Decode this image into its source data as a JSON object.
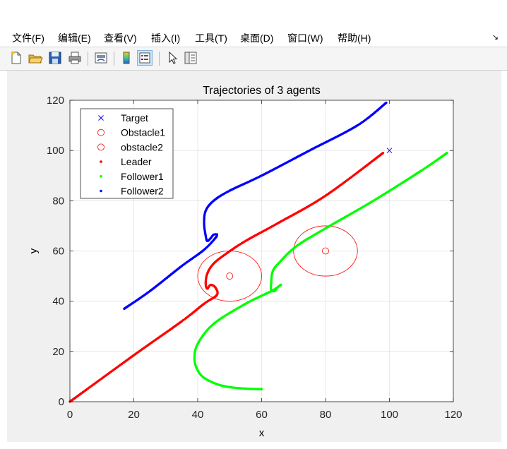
{
  "menubar": {
    "items": [
      "文件(F)",
      "编辑(E)",
      "查看(V)",
      "插入(I)",
      "工具(T)",
      "桌面(D)",
      "窗口(W)",
      "帮助(H)"
    ],
    "collapse_glyph": "↘"
  },
  "toolbar": {
    "buttons": [
      {
        "icon": "new-figure-icon"
      },
      {
        "icon": "open-file-icon"
      },
      {
        "icon": "save-icon"
      },
      {
        "icon": "print-icon"
      },
      {
        "icon": "link-plot-icon"
      },
      {
        "icon": "colorbar-icon"
      },
      {
        "icon": "legend-icon",
        "active": true
      },
      {
        "icon": "pointer-icon"
      },
      {
        "icon": "property-editor-icon"
      }
    ]
  },
  "colors": {
    "target": "#0000ff",
    "obstacle": "#ff0000",
    "leader": "#ff0000",
    "follower1": "#00ff00",
    "follower2": "#0000ff"
  },
  "chart_data": {
    "type": "scatter",
    "title": "Trajectories of 3 agents",
    "xlabel": "x",
    "ylabel": "y",
    "xlim": [
      0,
      120
    ],
    "ylim": [
      0,
      120
    ],
    "xticks": [
      0,
      20,
      40,
      60,
      80,
      100,
      120
    ],
    "yticks": [
      0,
      20,
      40,
      60,
      80,
      100,
      120
    ],
    "grid": true,
    "legend_position": "top-left",
    "legend": [
      "Target",
      "Obstacle1",
      "obstacle2",
      "Leader",
      "Follower1",
      "Follower2"
    ],
    "target": {
      "x": 100,
      "y": 100
    },
    "obstacles": [
      {
        "center": [
          50,
          50
        ],
        "radius": 10
      },
      {
        "center": [
          80,
          60
        ],
        "radius": 10
      }
    ],
    "series": [
      {
        "name": "Leader",
        "points": [
          [
            0,
            0
          ],
          [
            20,
            18.5
          ],
          [
            35,
            32
          ],
          [
            42,
            39
          ],
          [
            46,
            42.5
          ],
          [
            45.5,
            45.5
          ],
          [
            44,
            46.5
          ],
          [
            43,
            45
          ],
          [
            42.5,
            47
          ],
          [
            43,
            51
          ],
          [
            45,
            55
          ],
          [
            49,
            59
          ],
          [
            55,
            64
          ],
          [
            65,
            71
          ],
          [
            80,
            82
          ],
          [
            98,
            99
          ]
        ]
      },
      {
        "name": "Follower1",
        "points": [
          [
            60,
            5
          ],
          [
            55,
            5.2
          ],
          [
            50,
            5.8
          ],
          [
            46,
            7
          ],
          [
            42,
            9.5
          ],
          [
            40,
            12.5
          ],
          [
            39,
            17
          ],
          [
            40,
            23
          ],
          [
            45,
            31
          ],
          [
            55,
            39
          ],
          [
            63,
            44
          ],
          [
            66,
            46.5
          ],
          [
            65,
            45.5
          ],
          [
            64,
            44
          ],
          [
            63,
            44.5
          ],
          [
            63,
            47
          ],
          [
            63.5,
            52
          ],
          [
            66,
            56
          ],
          [
            71,
            62
          ],
          [
            80,
            69
          ],
          [
            95,
            80
          ],
          [
            110,
            92
          ],
          [
            118,
            99
          ]
        ]
      },
      {
        "name": "Follower2",
        "points": [
          [
            17,
            37
          ],
          [
            25,
            44
          ],
          [
            35,
            54
          ],
          [
            42,
            60.5
          ],
          [
            46,
            66
          ],
          [
            45,
            66.5
          ],
          [
            44,
            65
          ],
          [
            43,
            64
          ],
          [
            42.5,
            66
          ],
          [
            42,
            71
          ],
          [
            42.5,
            76
          ],
          [
            45,
            80
          ],
          [
            50,
            84
          ],
          [
            60,
            90
          ],
          [
            75,
            100
          ],
          [
            90,
            110
          ],
          [
            99,
            119
          ]
        ]
      }
    ]
  }
}
